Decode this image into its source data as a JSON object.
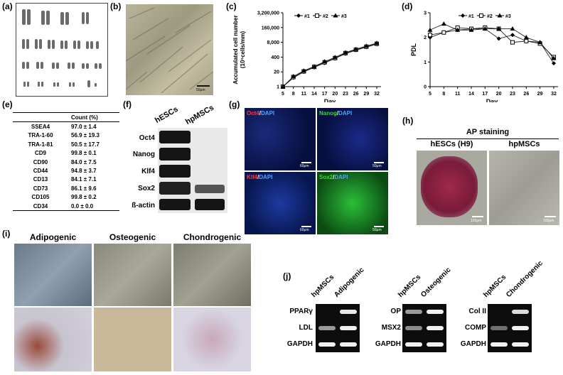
{
  "panels": {
    "a": {
      "label": "(a)"
    },
    "b": {
      "label": "(b)",
      "scale": "50μm"
    },
    "c": {
      "label": "(c)"
    },
    "d": {
      "label": "(d)"
    },
    "e": {
      "label": "(e)",
      "header": [
        "",
        "Count (%)"
      ],
      "rows": [
        [
          "SSEA4",
          "97.0 ± 1.4"
        ],
        [
          "TRA-1-60",
          "56.9 ± 19.3"
        ],
        [
          "TRA-1-81",
          "50.5 ± 17.7"
        ],
        [
          "CD9",
          "99.8 ± 0.1"
        ],
        [
          "CD90",
          "84.0 ± 7.5"
        ],
        [
          "CD44",
          "94.8 ± 3.7"
        ],
        [
          "CD13",
          "84.1 ± 7.1"
        ],
        [
          "CD73",
          "86.1 ± 9.6"
        ],
        [
          "CD105",
          "99.8 ± 0.2"
        ],
        [
          "CD34",
          "0.0 ± 0.0"
        ]
      ]
    },
    "f": {
      "label": "(f)",
      "columns": [
        "hESCs",
        "hpMSCs"
      ],
      "rows": [
        "Oct4",
        "Nanog",
        "Klf4",
        "Sox2",
        "ß-actin"
      ]
    },
    "g": {
      "label": "(g)",
      "tiles": [
        {
          "marker": "Oct4",
          "sep": "/",
          "dapi": "DAPI",
          "marker_color": "#ff3b3b",
          "scale": "60μm"
        },
        {
          "marker": "Nanog",
          "sep": "/",
          "dapi": "DAPI",
          "marker_color": "#33dd33",
          "scale": "50μm"
        },
        {
          "marker": "Klf4",
          "sep": "/",
          "dapi": "DAPI",
          "marker_color": "#ff3b3b",
          "scale": "60μm"
        },
        {
          "marker": "Sox2",
          "sep": "/",
          "dapi": "DAPI",
          "marker_color": "#33dd33",
          "scale": "50μm"
        }
      ]
    },
    "h": {
      "label": "(h)",
      "title": "AP staining",
      "cols": [
        "hESCs (H9)",
        "hpMSCs"
      ],
      "scale": "100μm"
    },
    "i": {
      "label": "(i)",
      "cols": [
        "Adipogenic",
        "Osteogenic",
        "Chondrogenic"
      ]
    },
    "j": {
      "label": "(j)",
      "groups": [
        {
          "lanes": [
            "hpMSCs",
            "Adipogenic"
          ],
          "genes": [
            "PPARγ",
            "LDL",
            "GAPDH"
          ]
        },
        {
          "lanes": [
            "hpMSCs",
            "Osteogenic"
          ],
          "genes": [
            "OP",
            "MSX2",
            "GAPDH"
          ]
        },
        {
          "lanes": [
            "hpMSCs",
            "Chondrogenic"
          ],
          "genes": [
            "Col II",
            "COMP",
            "GAPDH"
          ]
        }
      ]
    }
  },
  "chart_data": [
    {
      "type": "line",
      "panel": "c",
      "ylabel_line1": "Accumulated cell number",
      "ylabel_line2": "(10⁵cells/mm)",
      "xlabel": "Day",
      "x": [
        5,
        8,
        11,
        14,
        17,
        20,
        23,
        26,
        29,
        32
      ],
      "y_ticks": [
        "3,200,000",
        "160,000",
        "8,000",
        "400",
        "20",
        "1"
      ],
      "y_scale": "log",
      "series": [
        {
          "name": "#1",
          "marker": "diamond",
          "values": [
            1,
            6,
            20,
            50,
            120,
            300,
            800,
            1600,
            3000,
            5500
          ]
        },
        {
          "name": "#2",
          "marker": "square",
          "values": [
            1,
            7,
            22,
            55,
            140,
            330,
            900,
            1800,
            3300,
            6000
          ]
        },
        {
          "name": "#3",
          "marker": "triangle",
          "values": [
            1,
            8,
            25,
            60,
            160,
            380,
            1000,
            2000,
            3800,
            6800
          ]
        }
      ]
    },
    {
      "type": "line",
      "panel": "d",
      "ylabel": "PDL",
      "xlabel": "Day",
      "x": [
        5,
        8,
        11,
        14,
        17,
        20,
        23,
        26,
        29,
        32
      ],
      "ylim": [
        0,
        3
      ],
      "y_ticks": [
        "0",
        "1",
        "2",
        "3"
      ],
      "series": [
        {
          "name": "#1",
          "marker": "diamond",
          "values": [
            2.0,
            2.2,
            2.3,
            2.35,
            2.35,
            1.95,
            2.1,
            1.85,
            1.8,
            0.95
          ]
        },
        {
          "name": "#2",
          "marker": "square",
          "values": [
            2.1,
            2.2,
            2.4,
            2.35,
            2.4,
            2.35,
            1.8,
            1.85,
            1.75,
            1.2
          ]
        },
        {
          "name": "#3",
          "marker": "triangle",
          "values": [
            2.3,
            2.55,
            2.3,
            2.3,
            2.35,
            2.35,
            2.35,
            2.0,
            1.8,
            1.15
          ]
        }
      ]
    }
  ]
}
